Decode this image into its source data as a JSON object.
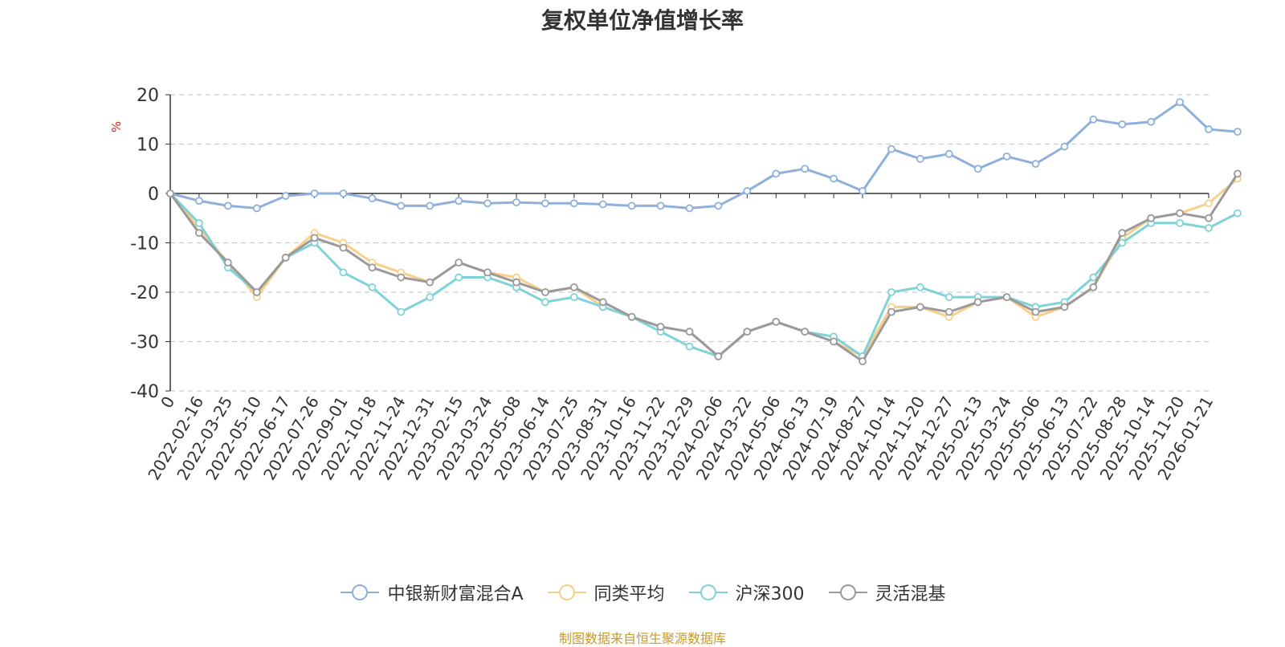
{
  "chart_data": {
    "type": "line",
    "title": "复权单位净值增长率",
    "ylabel": "%",
    "ylim": [
      -40,
      20
    ],
    "yticks": [
      -40,
      -30,
      -20,
      -10,
      0,
      10,
      20
    ],
    "x_ticks": [
      "0",
      "2022-02-16",
      "2022-03-25",
      "2022-05-10",
      "2022-06-17",
      "2022-07-26",
      "2022-09-01",
      "2022-10-18",
      "2022-11-24",
      "2022-12-31",
      "2023-02-15",
      "2023-03-24",
      "2023-05-08",
      "2023-06-14",
      "2023-07-25",
      "2023-08-31",
      "2023-10-16",
      "2023-11-22",
      "2023-12-29",
      "2024-02-06",
      "2024-03-22",
      "2024-05-06",
      "2024-06-13",
      "2024-07-19",
      "2024-08-27",
      "2024-10-14",
      "2024-11-20",
      "2024-12-27",
      "2025-02-13",
      "2025-03-24",
      "2025-05-06",
      "2025-06-13",
      "2025-07-22",
      "2025-08-28",
      "2025-10-14",
      "2025-11-20",
      "2026-01-21"
    ],
    "grid": true,
    "legend_position": "bottom-center",
    "series": [
      {
        "name": "中银新财富混合A",
        "color": "#8fb0dc",
        "values": [
          0,
          -1.5,
          -2.5,
          -3,
          -0.5,
          0,
          0,
          -1,
          -2.5,
          -2.5,
          -1.5,
          -2,
          -1.8,
          -2,
          -2,
          -2.2,
          -2.5,
          -2.5,
          -3,
          -2.5,
          0.5,
          4,
          5,
          3,
          0.5,
          9,
          7,
          8,
          5,
          7.5,
          6,
          9.5,
          15,
          14,
          14.5,
          18.5,
          13,
          12.5
        ]
      },
      {
        "name": "同类平均",
        "color": "#f7d08a",
        "values": [
          0,
          -7,
          -14,
          -21,
          -13,
          -8,
          -10,
          -14,
          -16,
          -18,
          -14,
          -16,
          -17,
          -20,
          -19,
          -23,
          -25,
          -27,
          -28,
          -33,
          -28,
          -26,
          -28,
          -30,
          -33,
          -23,
          -23,
          -25,
          -22,
          -21,
          -25,
          -23,
          -19,
          -9,
          -5,
          -4,
          -2,
          3
        ]
      },
      {
        "name": "沪深300",
        "color": "#7fd3d8",
        "values": [
          0,
          -6,
          -15,
          -20,
          -13,
          -10,
          -16,
          -19,
          -24,
          -21,
          -17,
          -17,
          -19,
          -22,
          -21,
          -23,
          -25,
          -28,
          -31,
          -33,
          -28,
          -26,
          -28,
          -29,
          -33,
          -20,
          -19,
          -21,
          -21,
          -21,
          -23,
          -22,
          -17,
          -10,
          -6,
          -6,
          -7,
          -4
        ]
      },
      {
        "name": "灵活混基",
        "color": "#9a9a9a",
        "values": [
          0,
          -8,
          -14,
          -20,
          -13,
          -9,
          -11,
          -15,
          -17,
          -18,
          -14,
          -16,
          -18,
          -20,
          -19,
          -22,
          -25,
          -27,
          -28,
          -33,
          -28,
          -26,
          -28,
          -30,
          -34,
          -24,
          -23,
          -24,
          -22,
          -21,
          -24,
          -23,
          -19,
          -8,
          -5,
          -4,
          -5,
          4
        ]
      }
    ]
  },
  "footer": "制图数据来自恒生聚源数据库"
}
